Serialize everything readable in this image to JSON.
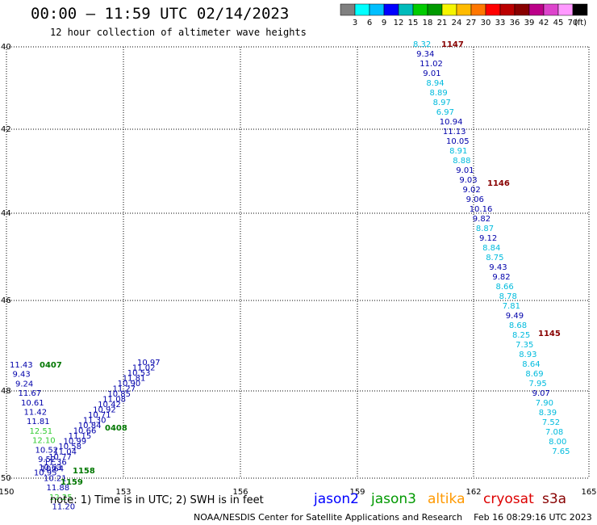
{
  "title": "00:00 – 11:59 UTC 02/14/2023",
  "subtitle": "12 hour collection of altimeter wave heights",
  "legend": {
    "colors": [
      "#808080",
      "#00ffff",
      "#00bfff",
      "#0000ff",
      "#00bbbb",
      "#00cc00",
      "#009900",
      "#f5f500",
      "#ffbb00",
      "#ff7700",
      "#ff0000",
      "#bb0000",
      "#880000",
      "#bb0088",
      "#dd44cc",
      "#ff99ff",
      "#000000"
    ],
    "labels": [
      "3",
      "6",
      "9",
      "12",
      "15",
      "18",
      "21",
      "24",
      "27",
      "30",
      "33",
      "36",
      "39",
      "42",
      "45",
      "70"
    ],
    "unit": "(ft)"
  },
  "axes": {
    "lat_labels": [
      "40",
      "42",
      "44",
      "46",
      "48",
      "50"
    ],
    "lon_labels": [
      "150",
      "153",
      "156",
      "159",
      "162",
      "165"
    ]
  },
  "passes": [
    {
      "id": "1147",
      "color": "#880000"
    },
    {
      "id": "1146",
      "color": "#880000"
    },
    {
      "id": "1145",
      "color": "#880000"
    },
    {
      "id": "0407",
      "color": "#007700"
    },
    {
      "id": "0408",
      "color": "#007700"
    },
    {
      "id": "1158",
      "color": "#007700"
    },
    {
      "id": "1159",
      "color": "#007700"
    }
  ],
  "track_east": [
    {
      "v": "8.32",
      "c": "#00bbdd"
    },
    {
      "v": "9.34",
      "c": "#0000aa"
    },
    {
      "v": "11.02",
      "c": "#0000aa"
    },
    {
      "v": "9.01",
      "c": "#0000aa"
    },
    {
      "v": "8.94",
      "c": "#00bbdd"
    },
    {
      "v": "8.89",
      "c": "#00bbdd"
    },
    {
      "v": "8.97",
      "c": "#00bbdd"
    },
    {
      "v": "6.97",
      "c": "#00bbdd"
    },
    {
      "v": "10.94",
      "c": "#0000aa"
    },
    {
      "v": "11.13",
      "c": "#0000aa"
    },
    {
      "v": "10.05",
      "c": "#0000aa"
    },
    {
      "v": "8.91",
      "c": "#00bbdd"
    },
    {
      "v": "8.88",
      "c": "#00bbdd"
    },
    {
      "v": "9.01",
      "c": "#0000aa"
    },
    {
      "v": "9.03",
      "c": "#0000aa"
    },
    {
      "v": "9.02",
      "c": "#0000aa"
    },
    {
      "v": "9.06",
      "c": "#0000aa"
    },
    {
      "v": "10.16",
      "c": "#0000aa"
    },
    {
      "v": "9.82",
      "c": "#0000aa"
    },
    {
      "v": "8.87",
      "c": "#00bbdd"
    },
    {
      "v": "9.12",
      "c": "#0000aa"
    },
    {
      "v": "8.84",
      "c": "#00bbdd"
    },
    {
      "v": "8.75",
      "c": "#00bbdd"
    },
    {
      "v": "9.43",
      "c": "#0000aa"
    },
    {
      "v": "9.82",
      "c": "#0000aa"
    },
    {
      "v": "8.66",
      "c": "#00bbdd"
    },
    {
      "v": "8.78",
      "c": "#00bbdd"
    },
    {
      "v": "7.81",
      "c": "#00bbdd"
    },
    {
      "v": "9.49",
      "c": "#0000aa"
    },
    {
      "v": "8.68",
      "c": "#00bbdd"
    },
    {
      "v": "8.25",
      "c": "#00bbdd"
    },
    {
      "v": "7.35",
      "c": "#00bbdd"
    },
    {
      "v": "8.93",
      "c": "#00bbdd"
    },
    {
      "v": "8.64",
      "c": "#00bbdd"
    },
    {
      "v": "8.69",
      "c": "#00bbdd"
    },
    {
      "v": "7.95",
      "c": "#00bbdd"
    },
    {
      "v": "9.07",
      "c": "#0000aa"
    },
    {
      "v": "7.90",
      "c": "#00bbdd"
    },
    {
      "v": "8.39",
      "c": "#00bbdd"
    },
    {
      "v": "7.52",
      "c": "#00bbdd"
    },
    {
      "v": "7.08",
      "c": "#00bbdd"
    },
    {
      "v": "8.00",
      "c": "#00bbdd"
    },
    {
      "v": "7.65",
      "c": "#00bbdd"
    }
  ],
  "track_west": [
    {
      "v": "11.43",
      "c": "#0000aa"
    },
    {
      "v": "9.43",
      "c": "#0000aa"
    },
    {
      "v": "9.24",
      "c": "#0000aa"
    },
    {
      "v": "11.67",
      "c": "#0000aa"
    },
    {
      "v": "10.61",
      "c": "#0000aa"
    },
    {
      "v": "11.42",
      "c": "#0000aa"
    },
    {
      "v": "11.81",
      "c": "#0000aa"
    },
    {
      "v": "12.51",
      "c": "#33cc33"
    },
    {
      "v": "12.10",
      "c": "#33cc33"
    },
    {
      "v": "10.52",
      "c": "#0000aa"
    },
    {
      "v": "9.52",
      "c": "#0000aa"
    },
    {
      "v": "10.64",
      "c": "#0000aa"
    },
    {
      "v": "10.21",
      "c": "#0000aa"
    },
    {
      "v": "11.88",
      "c": "#0000aa"
    },
    {
      "v": "12.25",
      "c": "#33cc33"
    },
    {
      "v": "11.20",
      "c": "#0000aa"
    }
  ],
  "track_diag": [
    {
      "v": "10.97",
      "c": "#0000aa"
    },
    {
      "v": "11.02",
      "c": "#0000aa"
    },
    {
      "v": "10.53",
      "c": "#0000aa"
    },
    {
      "v": "11.81",
      "c": "#0000aa"
    },
    {
      "v": "10.90",
      "c": "#0000aa"
    },
    {
      "v": "11.27",
      "c": "#0000aa"
    },
    {
      "v": "10.85",
      "c": "#0000aa"
    },
    {
      "v": "11.08",
      "c": "#0000aa"
    },
    {
      "v": "10.42",
      "c": "#0000aa"
    },
    {
      "v": "10.92",
      "c": "#0000aa"
    },
    {
      "v": "10.71",
      "c": "#0000aa"
    },
    {
      "v": "11.30",
      "c": "#0000aa"
    },
    {
      "v": "10.84",
      "c": "#0000aa"
    },
    {
      "v": "10.66",
      "c": "#0000aa"
    },
    {
      "v": "11.15",
      "c": "#0000aa"
    },
    {
      "v": "10.99",
      "c": "#0000aa"
    },
    {
      "v": "10.58",
      "c": "#0000aa"
    },
    {
      "v": "11.04",
      "c": "#0000aa"
    },
    {
      "v": "10.77",
      "c": "#0000aa"
    },
    {
      "v": "11.36",
      "c": "#0000aa"
    },
    {
      "v": "10.63",
      "c": "#0000aa"
    },
    {
      "v": "10.95",
      "c": "#0000aa"
    }
  ],
  "footer": {
    "note": "note:  1) Time is in UTC;  2) SWH is in feet",
    "satellites": [
      {
        "name": "jason2",
        "color": "#0000ff"
      },
      {
        "name": "jason3",
        "color": "#009900"
      },
      {
        "name": "altika",
        "color": "#ff9900"
      },
      {
        "name": "cryosat",
        "color": "#dd0000"
      },
      {
        "name": "s3a",
        "color": "#880000"
      }
    ],
    "credit": "NOAA/NESDIS Center for Satellite Applications and Research    Feb 16 08:29:16 UTC 2023"
  }
}
